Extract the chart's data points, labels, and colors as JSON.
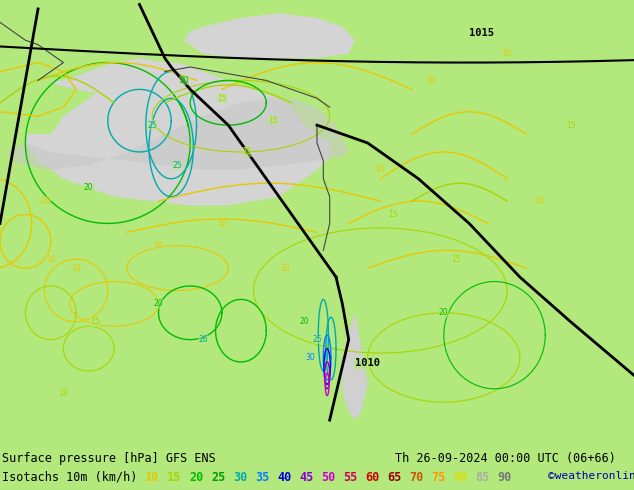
{
  "title_line1": "Surface pressure [hPa] GFS ENS",
  "title_line2": "Isotachs 10m (km/h)",
  "date_str": "Th 26-09-2024 00:00 UTC (06+66)",
  "copyright": "©weatheronline.co.uk",
  "bg_color": "#b3e87d",
  "sea_color": "#d8d8d8",
  "land_color": "#b3e87d",
  "fig_width": 6.34,
  "fig_height": 4.9,
  "dpi": 100,
  "legend_values": [
    10,
    15,
    20,
    25,
    30,
    35,
    40,
    45,
    50,
    55,
    60,
    65,
    70,
    75,
    80,
    85,
    90
  ],
  "legend_text_colors": [
    "#e6c800",
    "#aad400",
    "#00bb00",
    "#009900",
    "#00aaaa",
    "#0080ff",
    "#0000dd",
    "#8800cc",
    "#cc00cc",
    "#cc0055",
    "#cc0000",
    "#990000",
    "#cc5500",
    "#ff9900",
    "#dddd00",
    "#aaaaaa",
    "#777777"
  ]
}
